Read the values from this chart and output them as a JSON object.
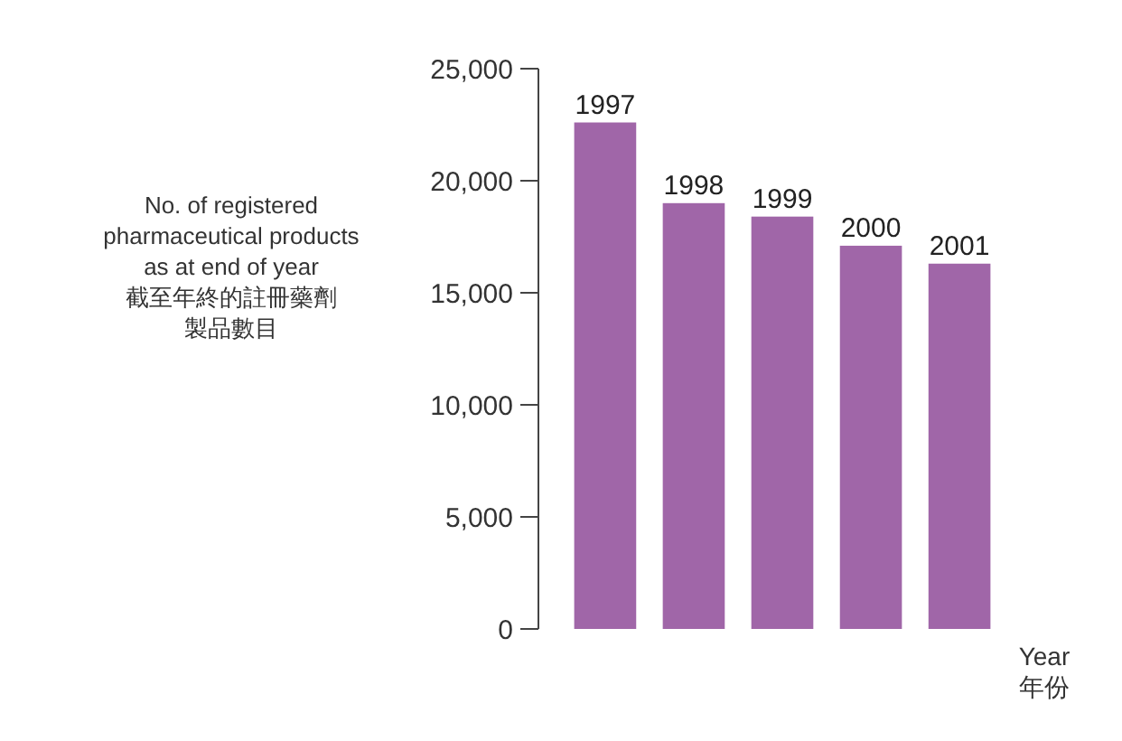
{
  "chart_data": {
    "type": "bar",
    "ylabel": "No. of registered pharmaceutical products as at end of year 截至年終的註冊藥劑製品數目",
    "xlabel": "Year 年份",
    "categories": [
      "1997",
      "1998",
      "1999",
      "2000",
      "2001"
    ],
    "values": [
      22600,
      19000,
      18400,
      17100,
      16300
    ],
    "color": "#a066a8",
    "ylim": [
      0,
      25000
    ],
    "yticks": [
      {
        "value": 0,
        "label": "0"
      },
      {
        "value": 5000,
        "label": "5,000"
      },
      {
        "value": 10000,
        "label": "10,000"
      },
      {
        "value": 15000,
        "label": "15,000"
      },
      {
        "value": 20000,
        "label": "20,000"
      },
      {
        "value": 25000,
        "label": "25,000"
      }
    ],
    "grid": false
  }
}
